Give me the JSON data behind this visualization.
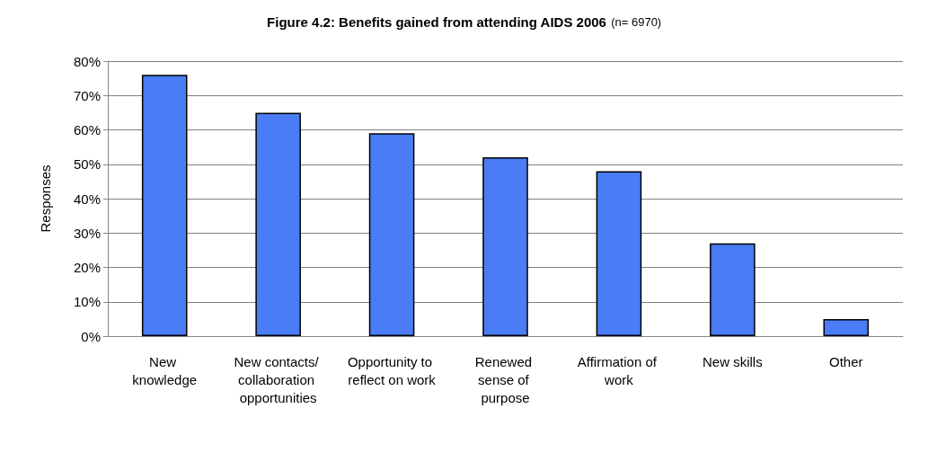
{
  "chart_data": {
    "type": "bar",
    "title": "Figure 4.2: Benefits gained from attending AIDS 2006",
    "subtitle": "(n= 6970)",
    "ylabel": "Responses",
    "categories": [
      "New knowledge",
      "New contacts/ collaboration opportunities",
      "Opportunity to reflect on work",
      "Renewed sense of purpose",
      "Affirmation of work",
      "New skills",
      "Other"
    ],
    "values": [
      76,
      65,
      59,
      52,
      48,
      27,
      5
    ],
    "color": "#4a7cf5",
    "ylim": [
      0,
      80
    ],
    "yticks": [
      {
        "value": 0,
        "label": "0%"
      },
      {
        "value": 10,
        "label": "10%"
      },
      {
        "value": 20,
        "label": "20%"
      },
      {
        "value": 30,
        "label": "30%"
      },
      {
        "value": 40,
        "label": "40%"
      },
      {
        "value": 50,
        "label": "50%"
      },
      {
        "value": 60,
        "label": "60%"
      },
      {
        "value": 70,
        "label": "70%"
      },
      {
        "value": 80,
        "label": "80%"
      }
    ],
    "grid": "y"
  }
}
